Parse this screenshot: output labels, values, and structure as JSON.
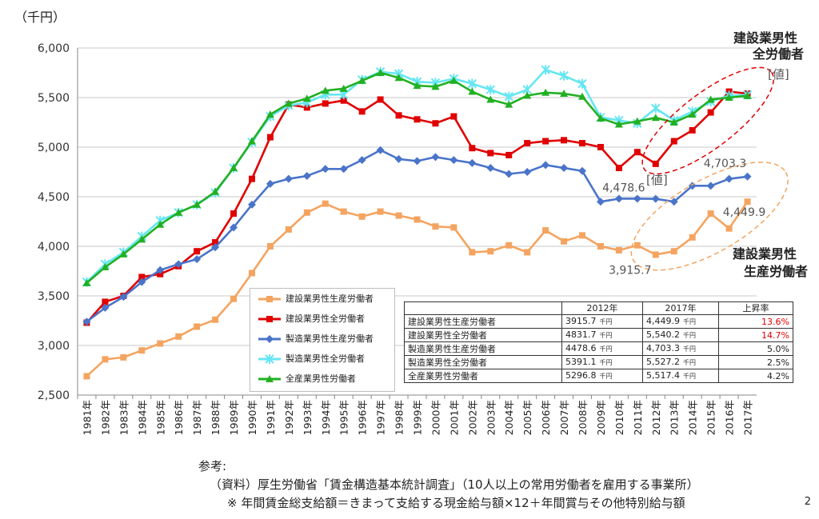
{
  "unit_label": "（千円）",
  "chart_data": {
    "type": "line",
    "categories": [
      "1981年",
      "1982年",
      "1983年",
      "1984年",
      "1985年",
      "1986年",
      "1987年",
      "1988年",
      "1989年",
      "1990年",
      "1991年",
      "1992年",
      "1993年",
      "1994年",
      "1995年",
      "1996年",
      "1997年",
      "1998年",
      "1999年",
      "2000年",
      "2001年",
      "2002年",
      "2003年",
      "2004年",
      "2005年",
      "2006年",
      "2007年",
      "2008年",
      "2009年",
      "2010年",
      "2011年",
      "2012年",
      "2013年",
      "2014年",
      "2015年",
      "2016年",
      "2017年"
    ],
    "ylim": [
      2500,
      6000
    ],
    "yticks": [
      "2,500",
      "3,000",
      "3,500",
      "4,000",
      "4,500",
      "5,000",
      "5,500",
      "6,000"
    ],
    "ytick_values": [
      2500,
      3000,
      3500,
      4000,
      4500,
      5000,
      5500,
      6000
    ],
    "grid": "horizontal",
    "legend_position": "lower-center",
    "series": [
      {
        "name": "建設業男性生産労働者",
        "color": "#f4a460",
        "marker": "square",
        "values": [
          2690,
          2860,
          2880,
          2950,
          3020,
          3090,
          3190,
          3260,
          3470,
          3730,
          4000,
          4170,
          4340,
          4430,
          4350,
          4300,
          4350,
          4310,
          4270,
          4200,
          4190,
          3940,
          3950,
          4010,
          3940,
          4160,
          4050,
          4110,
          4000,
          3960,
          4010,
          3915.7,
          3950,
          4090,
          4330,
          4180,
          4449.9
        ]
      },
      {
        "name": "建設業男性全労働者",
        "color": "#e00000",
        "marker": "square",
        "values": [
          3230,
          3440,
          3500,
          3690,
          3720,
          3800,
          3950,
          4040,
          4330,
          4680,
          5100,
          5430,
          5400,
          5440,
          5470,
          5360,
          5480,
          5320,
          5280,
          5240,
          5310,
          4990,
          4940,
          4920,
          5040,
          5060,
          5070,
          5040,
          5000,
          4790,
          4950,
          4831.7,
          5060,
          5170,
          5350,
          5560,
          5540.2
        ]
      },
      {
        "name": "製造業男性生産労働者",
        "color": "#4a74c9",
        "marker": "diamond",
        "values": [
          3240,
          3380,
          3490,
          3640,
          3760,
          3820,
          3870,
          3990,
          4190,
          4420,
          4630,
          4680,
          4710,
          4780,
          4780,
          4870,
          4970,
          4880,
          4860,
          4900,
          4870,
          4840,
          4790,
          4730,
          4750,
          4820,
          4790,
          4760,
          4450,
          4480,
          4480,
          4478.6,
          4450,
          4610,
          4610,
          4680,
          4703.3
        ]
      },
      {
        "name": "製造業男性全労働者",
        "color": "#66e6f2",
        "marker": "star",
        "values": [
          3640,
          3820,
          3940,
          4100,
          4260,
          4340,
          4420,
          4540,
          4790,
          5050,
          5310,
          5420,
          5450,
          5530,
          5530,
          5680,
          5760,
          5740,
          5660,
          5650,
          5690,
          5640,
          5580,
          5510,
          5580,
          5780,
          5720,
          5640,
          5300,
          5270,
          5240,
          5391.1,
          5270,
          5360,
          5460,
          5520,
          5527.2
        ]
      },
      {
        "name": "全産業男性労働者",
        "color": "#22b022",
        "marker": "triangle",
        "values": [
          3630,
          3790,
          3920,
          4070,
          4220,
          4340,
          4420,
          4550,
          4790,
          5060,
          5330,
          5440,
          5490,
          5570,
          5590,
          5670,
          5750,
          5700,
          5620,
          5610,
          5670,
          5560,
          5480,
          5430,
          5520,
          5550,
          5540,
          5510,
          5290,
          5230,
          5260,
          5296.8,
          5250,
          5330,
          5480,
          5500,
          5517.4
        ]
      }
    ],
    "data_labels": [
      {
        "text": "4,703.3",
        "series": 2,
        "index": 36
      },
      {
        "text": "4,478.6",
        "series": 2,
        "index": 31
      },
      {
        "text": "4,449.9",
        "series": 0,
        "index": 36
      },
      {
        "text": "3,915.7",
        "series": 0,
        "index": 31
      }
    ],
    "annotations": {
      "total_title_1": "建設業男性",
      "total_title_2": "全労働者",
      "total_unit_top": "[値]",
      "total_unit_mid": "[値]",
      "prod_title_1": "建設業男性",
      "prod_title_2": "生産労働者"
    }
  },
  "table": {
    "headers": [
      "",
      "2012年",
      "2017年",
      "上昇率"
    ],
    "unit": "千円",
    "rows": [
      {
        "name": "建設業男性生産労働者",
        "v2012": "3915.7",
        "v2017": "4,449.9",
        "rate": "13.6%",
        "highlight": true
      },
      {
        "name": "建設業男性全労働者",
        "v2012": "4831.7",
        "v2017": "5,540.2",
        "rate": "14.7%",
        "highlight": true
      },
      {
        "name": "製造業男性生産労働者",
        "v2012": "4478.6",
        "v2017": "4,703.3",
        "rate": "5.0%",
        "highlight": false
      },
      {
        "name": "製造業男性全労働者",
        "v2012": "5391.1",
        "v2017": "5,527.2",
        "rate": "2.5%",
        "highlight": false
      },
      {
        "name": "全産業男性労働者",
        "v2012": "5296.8",
        "v2017": "5,517.4",
        "rate": "4.2%",
        "highlight": false
      }
    ]
  },
  "notes": {
    "reference": "参考:",
    "source": "（資料）厚生労働省「賃金構造基本統計調査」（10人以上の常用労働者を雇用する事業所）",
    "formula": "※ 年間賃金総支給額＝きまって支給する現金給与額×12＋年間賞与その他特別給与額"
  },
  "page_number": "2",
  "colors": {
    "grid": "#c8c8c8",
    "axis": "#888888",
    "highlight_rate": "#e00000",
    "ellipse_total": "#e00000",
    "ellipse_prod": "#f4a460"
  }
}
